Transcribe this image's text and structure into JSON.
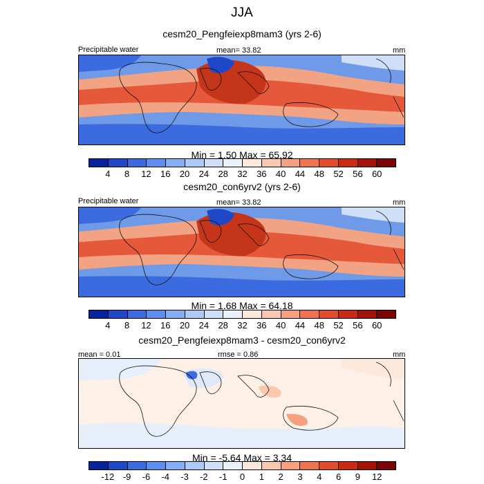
{
  "page": {
    "title": "JJA"
  },
  "panels": [
    {
      "id": "p1",
      "title": "cesm20_Pengfeiexp8mam3 (yrs 2-6)",
      "left_label": "Precipitable water",
      "center_label": "mean=  33.82",
      "units": "mm",
      "min_max": "Min =   1.50 Max =  65.92"
    },
    {
      "id": "p2",
      "title": "cesm20_con6yrv2 (yrs 2-6)",
      "left_label": "Precipitable water",
      "center_label": "mean=  33.82",
      "units": "mm",
      "min_max": "Min =   1.68 Max =  64.18"
    },
    {
      "id": "p3",
      "title": "cesm20_Pengfeiexp8mam3 - cesm20_con6yrv2",
      "left_label": "mean =   0.01",
      "center_label": "rmse =   0.86",
      "units": "mm",
      "min_max": "Min =  -5.64 Max =   3.34"
    }
  ],
  "colorbar_abs": {
    "ticks": [
      "4",
      "8",
      "12",
      "16",
      "20",
      "24",
      "28",
      "32",
      "36",
      "40",
      "44",
      "48",
      "52",
      "56",
      "60"
    ],
    "colors": [
      "#08249c",
      "#1f48c8",
      "#3c6be0",
      "#5d8eef",
      "#86aef5",
      "#aec9f7",
      "#cfdff8",
      "#eaf1fb",
      "#fde9dc",
      "#f9c8ae",
      "#f5a07f",
      "#ef7551",
      "#e24b2b",
      "#c92a14",
      "#a3130a",
      "#7a0505"
    ]
  },
  "colorbar_diff": {
    "ticks": [
      "-12",
      "-9",
      "-6",
      "-4",
      "-3",
      "-2",
      "-1",
      "0",
      "1",
      "2",
      "3",
      "4",
      "6",
      "9",
      "12"
    ],
    "colors": [
      "#08249c",
      "#1f48c8",
      "#3c6be0",
      "#5d8eef",
      "#86aef5",
      "#aec9f7",
      "#cfdff8",
      "#eaf1fb",
      "#fde9dc",
      "#f9c8ae",
      "#f5a07f",
      "#ef7551",
      "#e24b2b",
      "#c92a14",
      "#a3130a",
      "#7a0505"
    ]
  },
  "chart_data": [
    {
      "type": "heatmap",
      "title": "cesm20_Pengfeiexp8mam3 (yrs 2-6)",
      "variable": "Precipitable water",
      "units": "mm",
      "season": "JJA",
      "mean": 33.82,
      "min": 1.5,
      "max": 65.92,
      "colorbar_levels": [
        4,
        8,
        12,
        16,
        20,
        24,
        28,
        32,
        36,
        40,
        44,
        48,
        52,
        56,
        60
      ]
    },
    {
      "type": "heatmap",
      "title": "cesm20_con6yrv2 (yrs 2-6)",
      "variable": "Precipitable water",
      "units": "mm",
      "season": "JJA",
      "mean": 33.82,
      "min": 1.68,
      "max": 64.18,
      "colorbar_levels": [
        4,
        8,
        12,
        16,
        20,
        24,
        28,
        32,
        36,
        40,
        44,
        48,
        52,
        56,
        60
      ]
    },
    {
      "type": "heatmap",
      "title": "cesm20_Pengfeiexp8mam3 - cesm20_con6yrv2",
      "units": "mm",
      "season": "JJA",
      "mean": 0.01,
      "rmse": 0.86,
      "min": -5.64,
      "max": 3.34,
      "colorbar_levels": [
        -12,
        -9,
        -6,
        -4,
        -3,
        -2,
        -1,
        0,
        1,
        2,
        3,
        4,
        6,
        9,
        12
      ]
    }
  ]
}
